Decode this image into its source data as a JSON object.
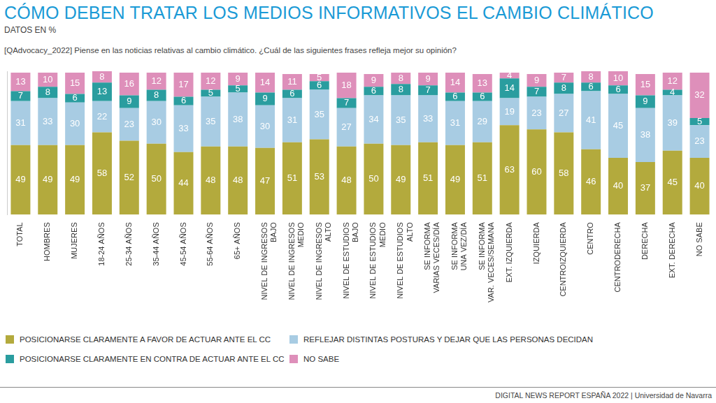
{
  "chart_data": {
    "type": "bar",
    "title": "CÓMO DEBEN TRATAR LOS MEDIOS INFORMATIVOS EL CAMBIO CLIMÁTICO",
    "subtitle": "DATOS EN %",
    "question": "[QAdvocacy_2022] Piense en las noticias relativas al cambio climático. ¿Cuál de las siguientes frases refleja mejor su opinión?",
    "source": "DIGITAL NEWS REPORT ESPAÑA 2022 | Universidad de Navarra",
    "categories": [
      "TOTAL",
      "HOMBRES",
      "MUJERES",
      "18-24 AÑOS",
      "25-34 AÑOS",
      "35-44 AÑOS",
      "45-54 AÑOS",
      "55-64 AÑOS",
      "65+ AÑOS",
      "NIVEL DE INGRESOS\nBAJO",
      "NIVEL DE INGRESOS\nMEDIO",
      "NIVEL DE INGRESOS\nALTO",
      "NIVEL DE ESTUDIOS\nBAJO",
      "NIVEL DE ESTUDIOS\nMEDIO",
      "NIVEL DE ESTUDIOS\nALTO",
      "SE INFORMA\nVARIAS VECES/DÍA",
      "SE INFORMA\nUNA VEZ/DÍA",
      "SE INFORMA\nVAR. VECES/SEMANA",
      "EXT. IZQUIERDA",
      "IZQUIERDA",
      "CENTROIZQUIERDA",
      "CENTRO",
      "CENTRODERECHA",
      "DERECHA",
      "EXT. DERECHA",
      "NO SABE"
    ],
    "series": [
      {
        "name": "POSICIONARSE CLARAMENTE A FAVOR DE ACTUAR ANTE EL CC",
        "color": "#b3aa3d",
        "values": [
          49,
          49,
          49,
          58,
          52,
          50,
          44,
          48,
          48,
          47,
          51,
          53,
          48,
          50,
          49,
          51,
          49,
          51,
          63,
          60,
          58,
          46,
          40,
          37,
          45,
          40
        ]
      },
      {
        "name": "REFLEJAR DISTINTAS POSTURAS Y DEJAR QUE LAS PERSONAS DECIDAN",
        "color": "#a8cce3",
        "values": [
          31,
          33,
          30,
          22,
          23,
          30,
          33,
          35,
          38,
          30,
          31,
          35,
          27,
          34,
          35,
          33,
          31,
          29,
          19,
          23,
          27,
          41,
          45,
          38,
          39,
          23
        ]
      },
      {
        "name": "POSICIONARSE CLARAMENTE EN CONTRA DE ACTUAR ANTE EL CC",
        "color": "#2a9d9f",
        "values": [
          7,
          8,
          6,
          13,
          9,
          8,
          6,
          5,
          5,
          9,
          6,
          6,
          7,
          6,
          8,
          7,
          6,
          6,
          14,
          7,
          8,
          6,
          6,
          9,
          4,
          5
        ]
      },
      {
        "name": "NO SABE",
        "color": "#de8fba",
        "values": [
          13,
          10,
          15,
          8,
          16,
          12,
          17,
          12,
          9,
          14,
          11,
          5,
          18,
          9,
          8,
          9,
          14,
          13,
          4,
          9,
          7,
          8,
          10,
          15,
          12,
          32
        ]
      }
    ],
    "ylim": [
      0,
      101
    ],
    "stacked": true,
    "data_labels": true,
    "tick_labels": "x",
    "grid": false,
    "legend": "bottom"
  }
}
